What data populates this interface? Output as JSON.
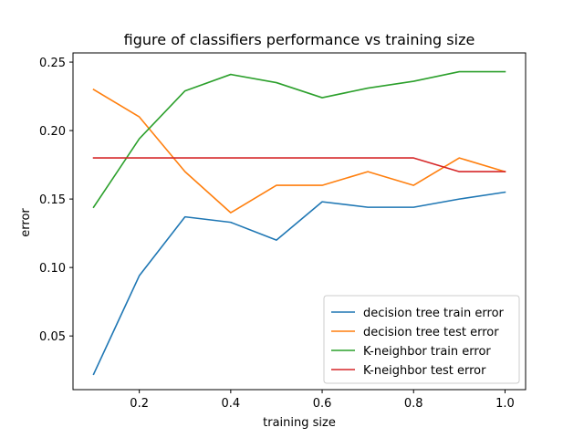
{
  "chart_data": {
    "type": "line",
    "title": "figure of classifiers performance vs training size",
    "xlabel": "training size",
    "ylabel": "error",
    "xlim": [
      0.055,
      1.045
    ],
    "ylim": [
      0.0108,
      0.2567
    ],
    "xticks": [
      0.2,
      0.4,
      0.6,
      0.8,
      1.0
    ],
    "xtick_labels": [
      "0.2",
      "0.4",
      "0.6",
      "0.8",
      "1.0"
    ],
    "yticks": [
      0.05,
      0.1,
      0.15,
      0.2,
      0.25
    ],
    "ytick_labels": [
      "0.05",
      "0.10",
      "0.15",
      "0.20",
      "0.25"
    ],
    "grid": false,
    "legend_position": "lower-right",
    "x": [
      0.1,
      0.2,
      0.3,
      0.4,
      0.5,
      0.6,
      0.7,
      0.8,
      0.9,
      1.0
    ],
    "series": [
      {
        "name": "decision tree train error",
        "color": "#1f77b4",
        "values": [
          0.022,
          0.094,
          0.137,
          0.133,
          0.12,
          0.148,
          0.144,
          0.144,
          0.15,
          0.155
        ]
      },
      {
        "name": "decision tree test error",
        "color": "#ff7f0e",
        "values": [
          0.23,
          0.21,
          0.17,
          0.14,
          0.16,
          0.16,
          0.17,
          0.16,
          0.18,
          0.17
        ]
      },
      {
        "name": "K-neighbor train error",
        "color": "#2ca02c",
        "values": [
          0.144,
          0.194,
          0.229,
          0.241,
          0.235,
          0.224,
          0.231,
          0.236,
          0.243,
          0.243
        ]
      },
      {
        "name": "K-neighbor test error",
        "color": "#d62728",
        "values": [
          0.18,
          0.18,
          0.18,
          0.18,
          0.18,
          0.18,
          0.18,
          0.18,
          0.17,
          0.17
        ]
      }
    ]
  }
}
